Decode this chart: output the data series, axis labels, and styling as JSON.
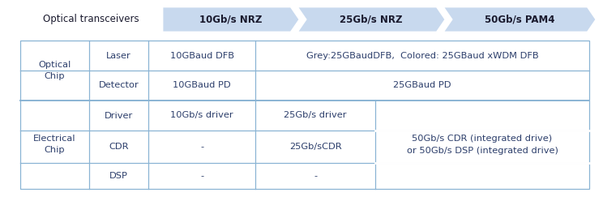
{
  "bg_color": "#ffffff",
  "arrow_color": "#c8d9ee",
  "text_color": "#2c3e6b",
  "border_color": "#8ab4d4",
  "header_label": "Optical transceivers",
  "arrow_labels": [
    "10Gb/s NRZ",
    "25Gb/s NRZ",
    "50Gb/s PAM4"
  ],
  "col2_labels": [
    "Laser",
    "Detector",
    "Driver",
    "CDR",
    "DSP"
  ],
  "col3_data": [
    "10GBaud DFB",
    "10GBaud PD",
    "10Gb/s driver",
    "-",
    "-"
  ],
  "col4_optical_laser": "Grey:25GBaudDFB,  Colored: 25GBaud xWDM DFB",
  "col4_optical_detector": "25GBaud PD",
  "col4_elec_driver": "25Gb/s driver",
  "col4_elec_cdr": "25Gb/sCDR",
  "col4_elec_dsp": "-",
  "col5_elec": "50Gb/s CDR (integrated drive)\nor 50Gb/s DSP (integrated drive)",
  "fig_width": 7.44,
  "fig_height": 2.64,
  "dpi": 100
}
